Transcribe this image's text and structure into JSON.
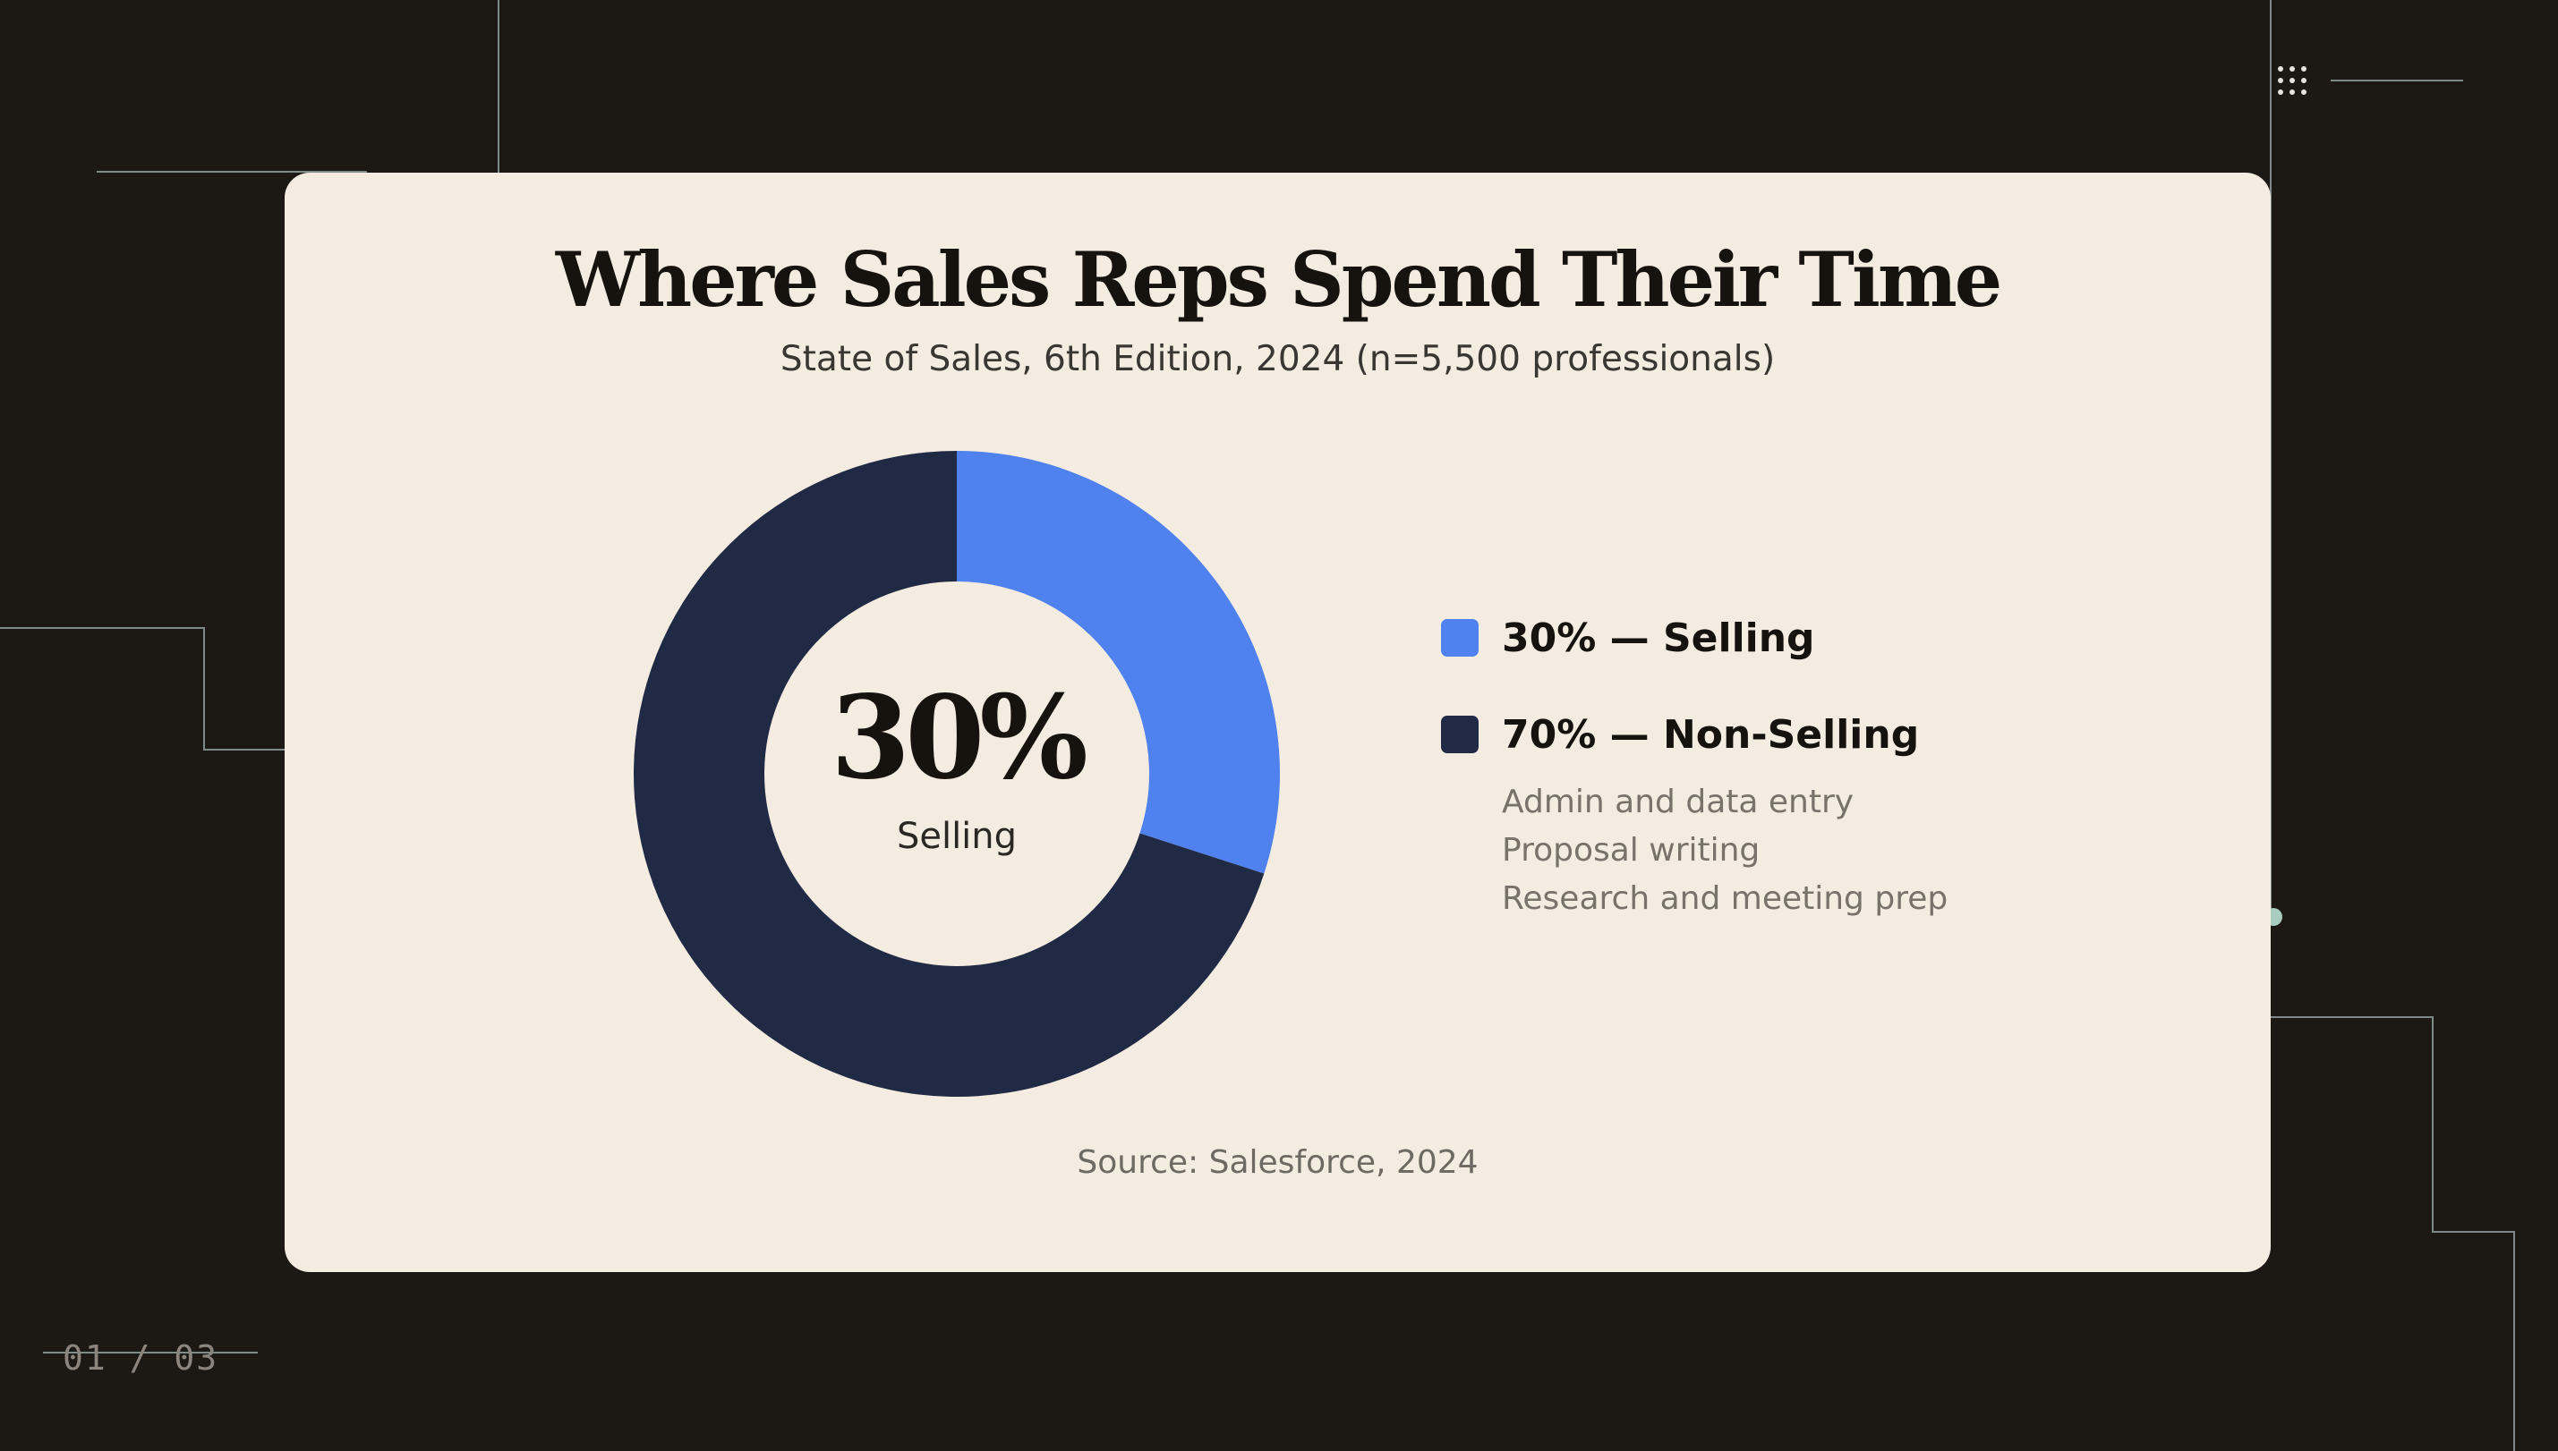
{
  "slide": {
    "counter": "01 / 03",
    "accent_line_color": "#7f8b88",
    "dot_color": "#a9ccc0"
  },
  "header": {
    "title": "Where Sales Reps Spend Their Time",
    "subtitle": "State of Sales, 6th Edition, 2024 (n=5,500 professionals)"
  },
  "center": {
    "value": "30%",
    "label": "Selling"
  },
  "legend": {
    "items": [
      {
        "label": "30% — Selling",
        "color": "#4f82ee"
      },
      {
        "label": "70% — Non-Selling",
        "color": "#212a45"
      }
    ],
    "non_selling_details": [
      "Admin and data entry",
      "Proposal writing",
      "Research and meeting prep"
    ]
  },
  "footer": {
    "source": "Source: Salesforce, 2024"
  },
  "chart_data": {
    "type": "pie",
    "donut": true,
    "title": "Where Sales Reps Spend Their Time",
    "subtitle": "State of Sales, 6th Edition, 2024 (n=5,500 professionals)",
    "categories": [
      "Selling",
      "Non-Selling"
    ],
    "values": [
      30,
      70
    ],
    "units": "%",
    "colors": [
      "#4f82ee",
      "#212a45"
    ],
    "legend_position": "right",
    "center_label": "30% Selling",
    "source": "Source: Salesforce, 2024"
  }
}
